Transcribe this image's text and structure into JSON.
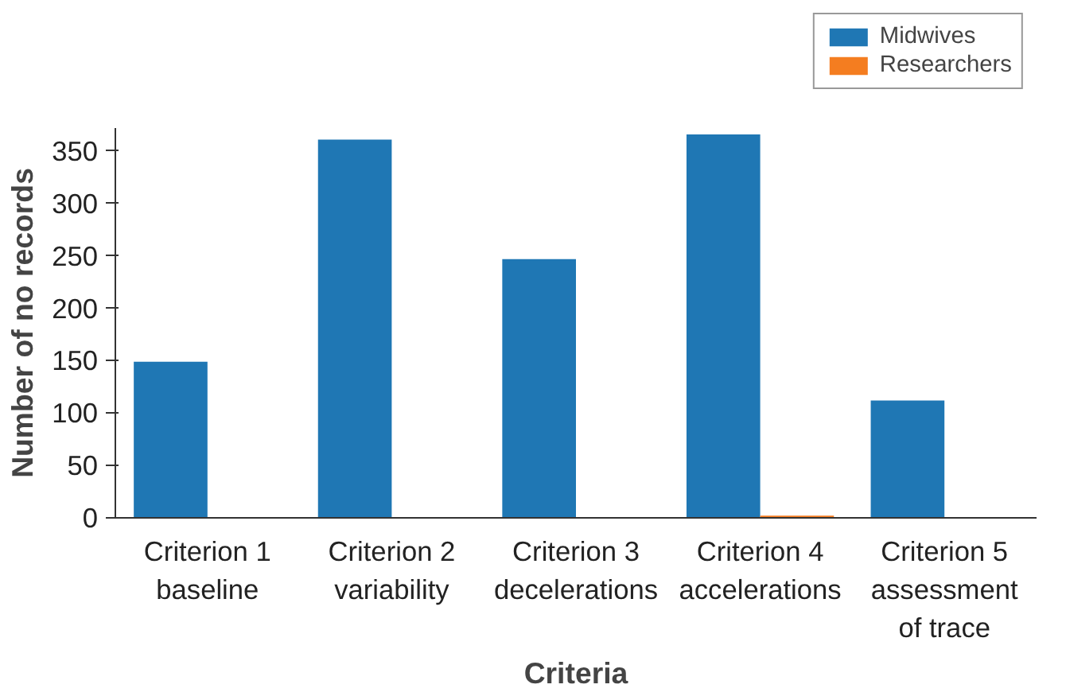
{
  "chart_data": {
    "type": "bar",
    "xlabel": "Criteria",
    "ylabel": "Number of no records",
    "categories": [
      "Criterion 1\nbaseline",
      "Criterion 2\nvariability",
      "Criterion 3\ndecelerations",
      "Criterion 4\naccelerations",
      "Criterion 5\nassessment\nof trace"
    ],
    "series": [
      {
        "name": "Midwives",
        "color": "#1f77b4",
        "values": [
          149,
          361,
          247,
          366,
          112
        ]
      },
      {
        "name": "Researchers",
        "color": "#f47d20",
        "values": [
          0,
          0,
          0,
          2,
          0
        ]
      }
    ],
    "ylim": [
      0,
      372
    ],
    "yticks": [
      0,
      50,
      100,
      150,
      200,
      250,
      300,
      350
    ],
    "grid": false,
    "legend": "top right"
  }
}
